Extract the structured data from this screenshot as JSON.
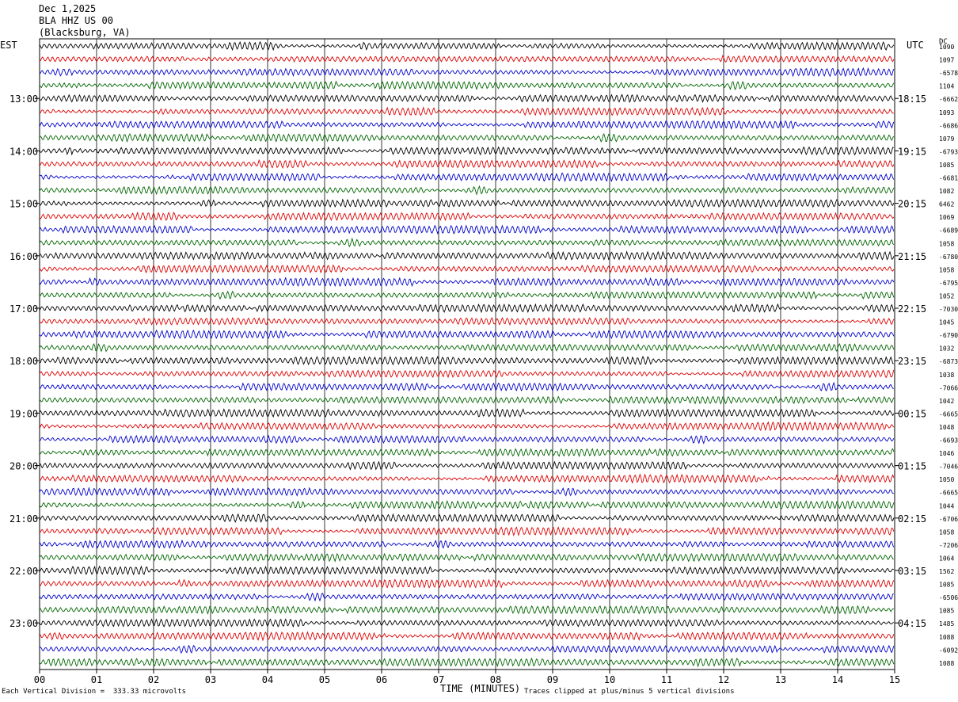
{
  "header": {
    "date": "Dec 1,2025",
    "station": "BLA HHZ US 00",
    "location": "(Blacksburg, VA)"
  },
  "chart_data": {
    "type": "line",
    "title": "BLA HHZ US 00 (Blacksburg, VA)",
    "date": "Dec 1,2025",
    "left_timezone": "EST",
    "right_timezone": "UTC",
    "right_column_label": "DC",
    "xlabel": "TIME (MINUTES)",
    "x_ticks": [
      "00",
      "01",
      "02",
      "03",
      "04",
      "05",
      "06",
      "07",
      "08",
      "09",
      "10",
      "11",
      "12",
      "13",
      "14",
      "15"
    ],
    "xlim": [
      0,
      15
    ],
    "trace_count": 48,
    "trace_minutes": 15,
    "trace_colors": [
      "#000000",
      "#dd0000",
      "#0000cc",
      "#006600"
    ],
    "left_hour_labels": [
      "13:00",
      "14:00",
      "15:00",
      "16:00",
      "17:00",
      "18:00",
      "19:00",
      "20:00",
      "21:00",
      "22:00",
      "23:00"
    ],
    "right_hour_labels": [
      "18:15",
      "19:15",
      "20:15",
      "21:15",
      "22:15",
      "23:15",
      "00:15",
      "01:15",
      "02:15",
      "03:15",
      "04:15"
    ],
    "dc_offsets": [
      "1090",
      "1097",
      "-6578",
      "1104",
      "-6662",
      "1093",
      "-6686",
      "1079",
      "-6793",
      "1085",
      "-6681",
      "1082",
      "6462",
      "1069",
      "-6689",
      "1058",
      "-6780",
      "1058",
      "-6795",
      "1052",
      "-7030",
      "1045",
      "-6790",
      "1032",
      "-6873",
      "1038",
      "-7066",
      "1042",
      "-6665",
      "1048",
      "-6693",
      "1046",
      "-7046",
      "1050",
      "-6665",
      "1044",
      "-6706",
      "1058",
      "-7206",
      "1064",
      "1562",
      "1085",
      "-6506",
      "1085",
      "1485",
      "1088",
      "-6092",
      "1088"
    ],
    "vertical_division": "333.33 microvolts",
    "clip_note": "Traces clipped at plus/minus 5 vertical divisions"
  },
  "footer": {
    "scale_text": "Each Vertical Division =  333.33 microvolts",
    "clip_text": "Traces clipped at plus/minus 5 vertical divisions"
  }
}
